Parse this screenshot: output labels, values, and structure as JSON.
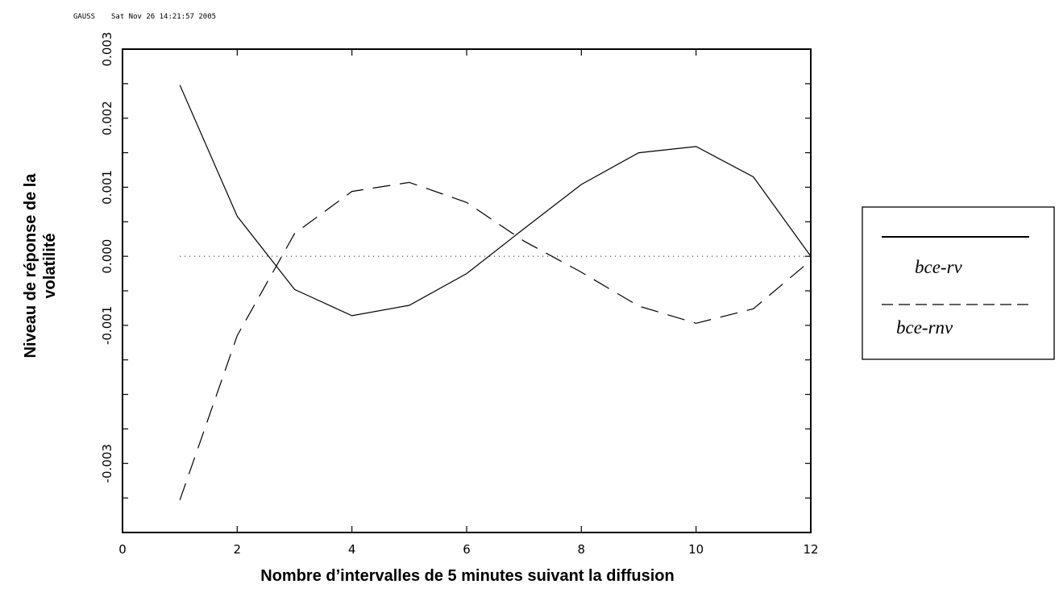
{
  "header": {
    "program": "GAUSS",
    "timestamp": "Sat Nov 26 14:21:57 2005"
  },
  "chart_data": {
    "type": "line",
    "title": "",
    "xlabel": "Nombre d’intervalles de 5 minutes suivant la diffusion",
    "ylabel_lines": [
      "Niveau de réponse de la",
      "volatilité"
    ],
    "xlim": [
      0,
      12
    ],
    "ylim": [
      -0.004,
      0.003
    ],
    "x_ticks": [
      0,
      2,
      4,
      6,
      8,
      10,
      12
    ],
    "x_tick_labels": [
      "0",
      "2",
      "4",
      "6",
      "8",
      "10",
      "12"
    ],
    "y_ticks_labeled": [
      0.003,
      0.002,
      0.001,
      0.0,
      -0.001,
      -0.003
    ],
    "y_tick_labels": [
      "0.003",
      "0.002",
      "0.001",
      "0.000",
      "-0.001",
      "-0.003"
    ],
    "y_ticks_minor": [
      -0.004,
      -0.0035,
      -0.003,
      -0.0025,
      -0.002,
      -0.0015,
      -0.001,
      -0.0005,
      0.0,
      0.0005,
      0.001,
      0.0015,
      0.002,
      0.0025,
      0.003
    ],
    "zero_line": {
      "style": "dotted",
      "x_range": [
        1,
        12
      ]
    },
    "grid": false,
    "legend_position": "right",
    "series": [
      {
        "name": "bce-rv",
        "style": "solid",
        "color": "#000000",
        "x": [
          1,
          2,
          3,
          4,
          5,
          6,
          7,
          8,
          9,
          10,
          11,
          12
        ],
        "y": [
          0.00248,
          0.00058,
          -0.00048,
          -0.00086,
          -0.00071,
          -0.00025,
          0.0004,
          0.00104,
          0.0015,
          0.00159,
          0.00115,
          0.0
        ]
      },
      {
        "name": "bce-rnv",
        "style": "dashed",
        "color": "#000000",
        "x": [
          1,
          2,
          3,
          4,
          5,
          6,
          7,
          8,
          9,
          10,
          11,
          12
        ],
        "y": [
          -0.00353,
          -0.00115,
          0.00033,
          0.00094,
          0.00107,
          0.00078,
          0.00022,
          -0.00023,
          -0.00072,
          -0.00097,
          -0.00076,
          -6e-05
        ]
      }
    ]
  }
}
